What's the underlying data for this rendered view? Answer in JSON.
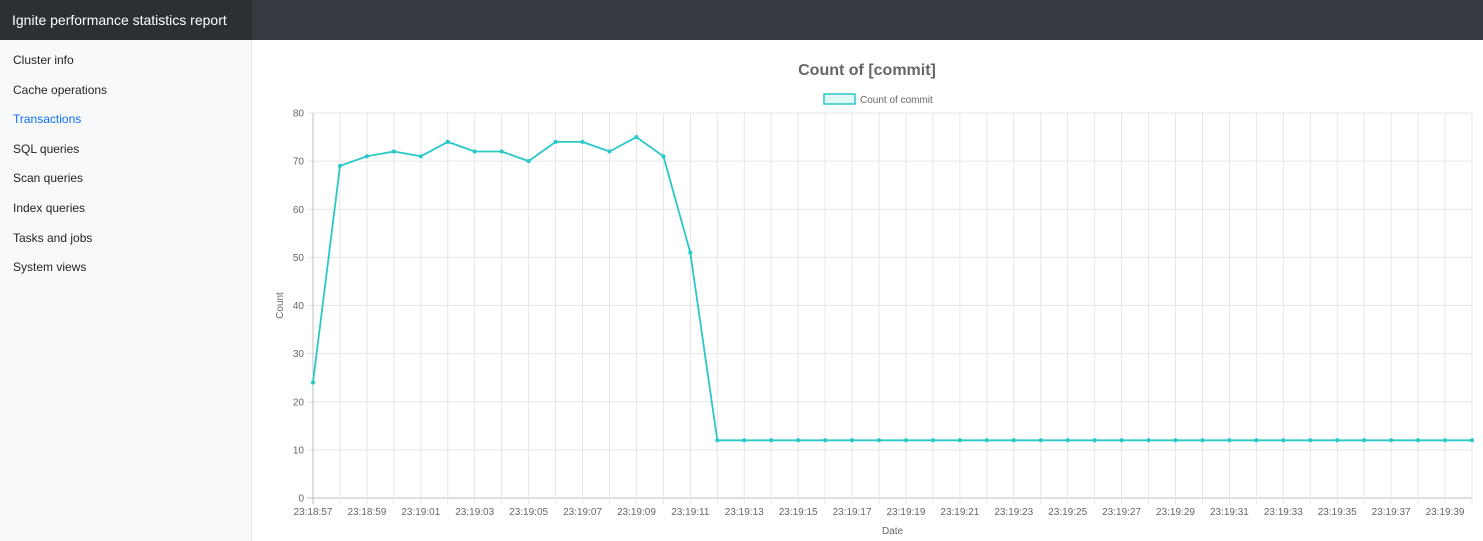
{
  "app": {
    "title": "Ignite performance statistics report"
  },
  "sidebar": {
    "items": [
      {
        "label": "Cluster info",
        "active": false
      },
      {
        "label": "Cache operations",
        "active": false
      },
      {
        "label": "Transactions",
        "active": true
      },
      {
        "label": "SQL queries",
        "active": false
      },
      {
        "label": "Scan queries",
        "active": false
      },
      {
        "label": "Index queries",
        "active": false
      },
      {
        "label": "Tasks and jobs",
        "active": false
      },
      {
        "label": "System views",
        "active": false
      }
    ]
  },
  "colors": {
    "navbar": "#343a40",
    "sidebar": "#f8f9fa",
    "active_link": "#0d6efd",
    "series": "#2ac8c8"
  },
  "chart_data": {
    "type": "line",
    "title": "Count of [commit]",
    "xlabel": "Date",
    "ylabel": "Count",
    "ylim": [
      0,
      80
    ],
    "yticks": [
      0,
      10,
      20,
      30,
      40,
      50,
      60,
      70,
      80
    ],
    "grid": true,
    "legend_position": "top",
    "x": [
      "23:18:57",
      "23:18:58",
      "23:18:59",
      "23:19:00",
      "23:19:01",
      "23:19:02",
      "23:19:03",
      "23:19:04",
      "23:19:05",
      "23:19:06",
      "23:19:07",
      "23:19:08",
      "23:19:09",
      "23:19:10",
      "23:19:11",
      "23:19:12",
      "23:19:13",
      "23:19:14",
      "23:19:15",
      "23:19:16",
      "23:19:17",
      "23:19:18",
      "23:19:19",
      "23:19:20",
      "23:19:21",
      "23:19:22",
      "23:19:23",
      "23:19:24",
      "23:19:25",
      "23:19:26",
      "23:19:27",
      "23:19:28",
      "23:19:29",
      "23:19:30",
      "23:19:31",
      "23:19:32",
      "23:19:33",
      "23:19:34",
      "23:19:35",
      "23:19:36",
      "23:19:37",
      "23:19:38",
      "23:19:39",
      "23:19:40"
    ],
    "x_tick_labels": [
      "23:18:57",
      "23:18:59",
      "23:19:01",
      "23:19:03",
      "23:19:05",
      "23:19:07",
      "23:19:09",
      "23:19:11",
      "23:19:13",
      "23:19:15",
      "23:19:17",
      "23:19:19",
      "23:19:21",
      "23:19:23",
      "23:19:25",
      "23:19:27",
      "23:19:29",
      "23:19:31",
      "23:19:33",
      "23:19:35",
      "23:19:37",
      "23:19:39"
    ],
    "series": [
      {
        "name": "Count of commit",
        "values": [
          24,
          69,
          71,
          72,
          71,
          74,
          72,
          72,
          70,
          74,
          74,
          72,
          75,
          71,
          51,
          12,
          12,
          12,
          12,
          12,
          12,
          12,
          12,
          12,
          12,
          12,
          12,
          12,
          12,
          12,
          12,
          12,
          12,
          12,
          12,
          12,
          12,
          12,
          12,
          12,
          12,
          12,
          12,
          12
        ]
      }
    ]
  }
}
